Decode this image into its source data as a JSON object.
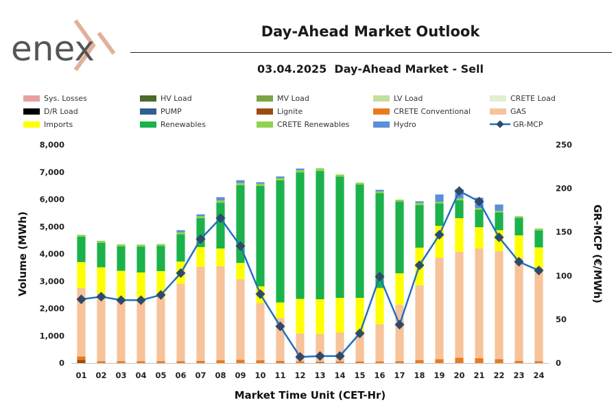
{
  "header": {
    "logo_text": "enex",
    "title": "Day-Ahead Market Outlook",
    "subtitle": "03.04.2025  Day-Ahead Market - Sell"
  },
  "chart_data": {
    "type": "bar",
    "stacked": true,
    "categories": [
      "01",
      "02",
      "03",
      "04",
      "05",
      "06",
      "07",
      "08",
      "09",
      "10",
      "11",
      "12",
      "13",
      "14",
      "15",
      "16",
      "17",
      "18",
      "19",
      "20",
      "21",
      "22",
      "23",
      "24"
    ],
    "xlabel": "Market Time Unit (CET-Hr)",
    "ylabel": "Volume (MWh)",
    "y2label": "GR-MCP (€/MWh)",
    "ylim": [
      0,
      8000
    ],
    "y2lim": [
      0,
      250
    ],
    "yticks": [
      "0",
      "1,000",
      "2,000",
      "3,000",
      "4,000",
      "5,000",
      "6,000",
      "7,000",
      "8,000"
    ],
    "y2ticks": [
      "0",
      "50",
      "100",
      "150",
      "200",
      "250"
    ],
    "legend": [
      {
        "name": "Sys. Losses",
        "color": "#e6a0a0"
      },
      {
        "name": "HV Load",
        "color": "#4d6b2e"
      },
      {
        "name": "MV Load",
        "color": "#7aa542"
      },
      {
        "name": "LV Load",
        "color": "#c4df9b"
      },
      {
        "name": "CRETE Load",
        "color": "#e2efd0"
      },
      {
        "name": "D/R Load",
        "color": "#000000"
      },
      {
        "name": "PUMP",
        "color": "#2f5f94"
      },
      {
        "name": "Lignite",
        "color": "#9b4d10"
      },
      {
        "name": "CRETE Conventional",
        "color": "#ea7a1e"
      },
      {
        "name": "GAS",
        "color": "#f7c39a"
      },
      {
        "name": "Imports",
        "color": "#ffff00"
      },
      {
        "name": "Renewables",
        "color": "#1bb24b"
      },
      {
        "name": "CRETE Renewables",
        "color": "#92d050"
      },
      {
        "name": "Hydro",
        "color": "#5b8fd6"
      },
      {
        "name": "GR-MCP",
        "color": "#1f6fc0",
        "marker": "#2e4a6b",
        "kind": "line"
      }
    ],
    "series": [
      {
        "name": "Lignite",
        "color": "#9b4d10",
        "values": [
          120,
          0,
          0,
          0,
          0,
          0,
          0,
          0,
          0,
          0,
          0,
          0,
          0,
          0,
          0,
          0,
          0,
          0,
          0,
          0,
          0,
          0,
          0,
          0
        ]
      },
      {
        "name": "CRETE Conventional",
        "color": "#ea7a1e",
        "values": [
          120,
          70,
          70,
          70,
          70,
          70,
          80,
          100,
          120,
          100,
          80,
          60,
          50,
          60,
          60,
          60,
          70,
          110,
          140,
          190,
          180,
          140,
          80,
          70
        ]
      },
      {
        "name": "GAS",
        "color": "#f7c39a",
        "values": [
          2510,
          2480,
          2280,
          2240,
          2330,
          2840,
          3450,
          3450,
          2950,
          2100,
          1570,
          1020,
          1020,
          1060,
          1030,
          1360,
          2060,
          2740,
          3720,
          3890,
          4020,
          3960,
          3770,
          3430
        ]
      },
      {
        "name": "Imports",
        "color": "#ffff00",
        "values": [
          950,
          960,
          1030,
          1010,
          970,
          810,
          720,
          650,
          600,
          610,
          570,
          1270,
          1270,
          1270,
          1300,
          1330,
          1160,
          1380,
          1170,
          1230,
          780,
          770,
          830,
          740
        ]
      },
      {
        "name": "Renewables",
        "color": "#1bb24b",
        "values": [
          930,
          900,
          900,
          950,
          920,
          1000,
          1060,
          1680,
          2850,
          3680,
          4480,
          4640,
          4700,
          4440,
          4150,
          3480,
          2630,
          1560,
          820,
          660,
          640,
          650,
          640,
          620
        ]
      },
      {
        "name": "CRETE Renewables",
        "color": "#92d050",
        "values": [
          70,
          70,
          70,
          70,
          70,
          70,
          70,
          80,
          80,
          80,
          80,
          80,
          100,
          80,
          70,
          60,
          70,
          80,
          60,
          70,
          60,
          60,
          60,
          70
        ]
      },
      {
        "name": "Hydro",
        "color": "#5b8fd6",
        "values": [
          0,
          0,
          0,
          0,
          0,
          80,
          70,
          120,
          100,
          60,
          60,
          60,
          0,
          0,
          0,
          60,
          0,
          60,
          270,
          330,
          380,
          230,
          0,
          0
        ]
      }
    ],
    "line": {
      "name": "GR-MCP",
      "axis": "right",
      "values": [
        73,
        76,
        72,
        72,
        78,
        103,
        142,
        166,
        134,
        79,
        42,
        7,
        8,
        8,
        34,
        99,
        44,
        112,
        147,
        197,
        185,
        144,
        116,
        106
      ]
    }
  }
}
